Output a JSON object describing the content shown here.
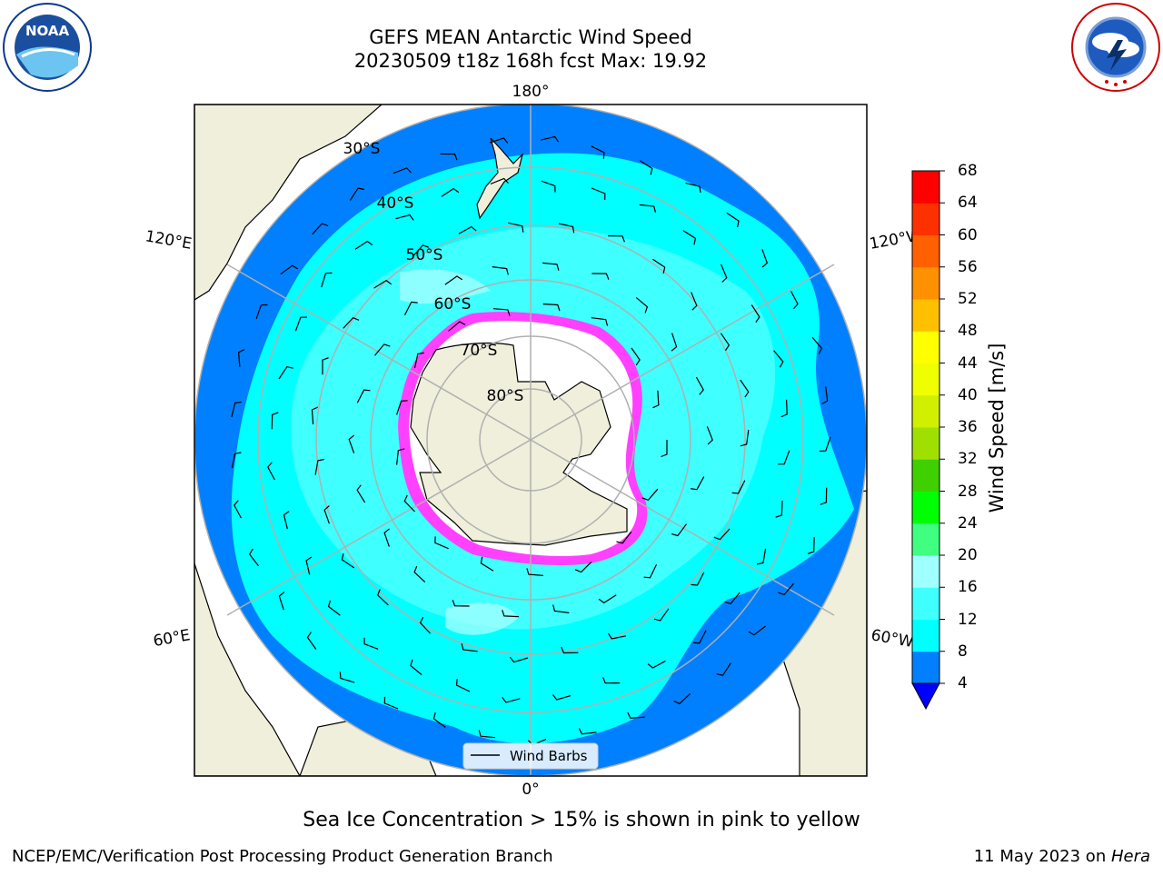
{
  "header": {
    "title_line1": "GEFS MEAN Antarctic Wind Speed",
    "title_line2": "20230509 t18z 168h fcst   Max: 19.92"
  },
  "logos": {
    "noaa_text": "NOAA",
    "noaa_ring_text": "NATIONAL OCEANIC AND ATMOSPHERIC ADMINISTRATION · U.S. DEPARTMENT OF COMMERCE",
    "nws_ring_text": "NATIONAL WEATHER SERVICE"
  },
  "map": {
    "longitude_labels": {
      "top": "180°",
      "bottom": "0°",
      "left_upper": "120°E",
      "left_lower": "60°E",
      "right_upper": "120°W",
      "right_lower": "60°W"
    },
    "latitude_labels": [
      "30°S",
      "40°S",
      "50°S",
      "60°S",
      "70°S",
      "80°S"
    ],
    "legend_label": "Wind Barbs"
  },
  "colorbar": {
    "label": "Wind Speed [m/s]",
    "ticks": [
      "4",
      "8",
      "12",
      "16",
      "20",
      "24",
      "28",
      "32",
      "36",
      "40",
      "44",
      "48",
      "52",
      "56",
      "60",
      "64",
      "68"
    ],
    "colors": [
      "#0080ff",
      "#00ffff",
      "#40ffff",
      "#a0ffff",
      "#40ff80",
      "#00ff00",
      "#40d000",
      "#a0e000",
      "#d0f000",
      "#f0ff00",
      "#ffff00",
      "#ffc000",
      "#ff9000",
      "#ff6000",
      "#ff3000",
      "#ff0000"
    ],
    "under_color": "#0000ff"
  },
  "colors": {
    "land": "#efefdb",
    "ocean_low": "#0080ff",
    "ocean_mid": "#00ffff",
    "ocean_high": "#40ffff",
    "ice": "#ff40ff",
    "grid": "#b0b0b0"
  },
  "footer": {
    "note": "Sea Ice Concentration > 15% is shown in pink to yellow",
    "credit": "NCEP/EMC/Verification Post Processing Product Generation Branch",
    "date": "11 May 2023 on ",
    "machine": "Hera"
  }
}
